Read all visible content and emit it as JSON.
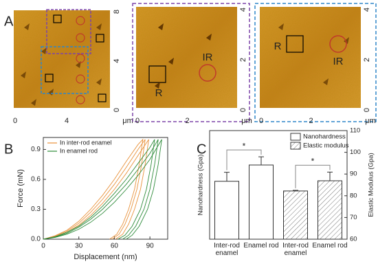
{
  "figure": {
    "panel_labels": [
      "A",
      "B",
      "C"
    ],
    "images": [
      {
        "xlim": [
          0,
          8
        ],
        "ylim": [
          0,
          8
        ],
        "xticks": [
          0,
          4
        ],
        "yticks": [
          0,
          4,
          8
        ],
        "xlabel": "μm"
      },
      {
        "xlim": [
          0,
          4
        ],
        "ylim": [
          0,
          4
        ],
        "xticks": [
          0,
          2
        ],
        "yticks": [
          0,
          2,
          4
        ],
        "xlabel": "μm",
        "labels": [
          "R",
          "IR"
        ],
        "frame_color": "#7d45a8"
      },
      {
        "xlim": [
          0,
          4
        ],
        "ylim": [
          0,
          4
        ],
        "xticks": [
          0,
          2
        ],
        "yticks": [
          0,
          2,
          4
        ],
        "xlabel": "μm",
        "labels": [
          "R",
          "IR"
        ],
        "frame_color": "#2f86c8"
      }
    ]
  },
  "chart_data": [
    {
      "type": "line",
      "xlabel": "Displacement (nm)",
      "ylabel": "Force (mN)",
      "xlim": [
        0,
        105
      ],
      "ylim": [
        0,
        1.02
      ],
      "xticks": [
        0,
        30,
        60,
        90
      ],
      "yticks": [
        {
          "value": 0,
          "label": "0.0"
        },
        0.3,
        0.6,
        0.9
      ],
      "series": [
        {
          "name": "In inter-rod enamel",
          "color": "#e8913a",
          "curves": [
            {
              "x": [
                0,
                10,
                20,
                30,
                40,
                50,
                60,
                70,
                80,
                86,
                83,
                79,
                74,
                69,
                64,
                58
              ],
              "values": [
                0,
                0.03,
                0.08,
                0.16,
                0.27,
                0.4,
                0.55,
                0.72,
                0.9,
                1.0,
                0.75,
                0.5,
                0.3,
                0.15,
                0.05,
                0
              ]
            },
            {
              "x": [
                0,
                10,
                20,
                30,
                40,
                50,
                60,
                70,
                80,
                89,
                86,
                82,
                77,
                72,
                67,
                61
              ],
              "values": [
                0,
                0.025,
                0.07,
                0.14,
                0.24,
                0.36,
                0.5,
                0.66,
                0.84,
                1.0,
                0.75,
                0.5,
                0.3,
                0.15,
                0.05,
                0
              ]
            },
            {
              "x": [
                0,
                10,
                20,
                30,
                40,
                50,
                60,
                70,
                80,
                84,
                81,
                77,
                72,
                67,
                62,
                56
              ],
              "values": [
                0,
                0.035,
                0.09,
                0.18,
                0.3,
                0.44,
                0.6,
                0.78,
                0.95,
                1.0,
                0.75,
                0.5,
                0.3,
                0.15,
                0.05,
                0
              ]
            }
          ]
        },
        {
          "name": "In enamel rod",
          "color": "#2e8b3a",
          "curves": [
            {
              "x": [
                0,
                10,
                20,
                30,
                40,
                50,
                60,
                70,
                80,
                90,
                97,
                94,
                90,
                85,
                78,
                72,
                67
              ],
              "values": [
                0,
                0.02,
                0.06,
                0.12,
                0.2,
                0.3,
                0.42,
                0.55,
                0.7,
                0.86,
                1.0,
                0.75,
                0.5,
                0.3,
                0.13,
                0.04,
                0
              ]
            },
            {
              "x": [
                0,
                10,
                20,
                30,
                40,
                50,
                60,
                70,
                80,
                90,
                100,
                97,
                93,
                88,
                81,
                75,
                70
              ],
              "values": [
                0,
                0.018,
                0.05,
                0.1,
                0.17,
                0.26,
                0.37,
                0.5,
                0.64,
                0.8,
                1.0,
                0.75,
                0.5,
                0.3,
                0.13,
                0.04,
                0
              ]
            },
            {
              "x": [
                0,
                10,
                20,
                30,
                40,
                50,
                60,
                70,
                80,
                90,
                94,
                91,
                87,
                82,
                75,
                69,
                63
              ],
              "values": [
                0,
                0.025,
                0.07,
                0.13,
                0.22,
                0.33,
                0.46,
                0.6,
                0.76,
                0.92,
                1.0,
                0.75,
                0.5,
                0.3,
                0.13,
                0.04,
                0
              ]
            }
          ]
        }
      ],
      "legend": "upper left"
    },
    {
      "type": "bar",
      "ylabel": "Nanohardness (Gpa)",
      "y2label": "Elastic Modulus (Gpa)",
      "categories": [
        "Inter-rod enamel",
        "Enamel rod",
        "Inter-rod enamel",
        "Enamel rod"
      ],
      "ylim": [
        0,
        6
      ],
      "y2lim": [
        60,
        110
      ],
      "y2ticks": [
        60,
        70,
        80,
        90,
        100,
        110
      ],
      "series": [
        {
          "name": "Nanohardness",
          "color": "#ffffff",
          "values": [
            3.2,
            4.1,
            null,
            null
          ],
          "errors": [
            0.5,
            0.45,
            null,
            null
          ]
        },
        {
          "name": "Elastic modulus",
          "color": "#ffffff",
          "hatch": true,
          "axis": "y2",
          "values": [
            null,
            null,
            82.2,
            86.9
          ],
          "errors": [
            null,
            null,
            0.3,
            4.0
          ]
        }
      ],
      "annotations": [
        "*",
        "*"
      ],
      "legend": "upper right"
    }
  ]
}
